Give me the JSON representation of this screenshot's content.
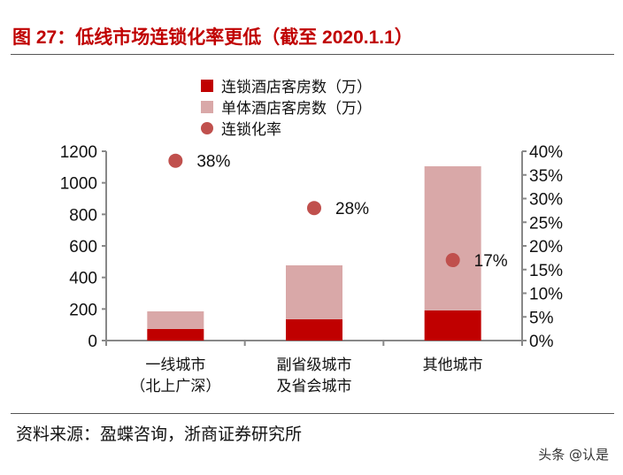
{
  "title": "图 27：低线市场连锁化率更低（截至 2020.1.1）",
  "source": "资料来源：盈蝶咨询，浙商证券研究所",
  "watermark": "头条 @认是",
  "chart_data": {
    "type": "bar",
    "stacked": true,
    "categories": [
      [
        "一线城市",
        "（北上广深）"
      ],
      [
        "副省级城市",
        "及省会城市"
      ],
      [
        "其他城市"
      ]
    ],
    "series": [
      {
        "name": "连锁酒店客房数（万）",
        "type": "bar",
        "axis": "left",
        "color": "#c00000",
        "values": [
          73,
          135,
          191
        ]
      },
      {
        "name": "单体酒店客房数（万）",
        "type": "bar",
        "axis": "left",
        "color": "#d9a8a8",
        "values": [
          112,
          342,
          914
        ]
      },
      {
        "name": "连锁化率",
        "type": "scatter",
        "axis": "right",
        "color": "#c0504d",
        "values": [
          0.38,
          0.28,
          0.17
        ],
        "labels": [
          "38%",
          "28%",
          "17%"
        ]
      }
    ],
    "ylim": [
      0,
      1200
    ],
    "yticks": [
      "0",
      "200",
      "400",
      "600",
      "800",
      "1000",
      "1200"
    ],
    "y2lim": [
      0,
      0.4
    ],
    "y2ticks": [
      "0%",
      "5%",
      "10%",
      "15%",
      "20%",
      "25%",
      "30%",
      "35%",
      "40%"
    ],
    "legend": "top",
    "grid": false
  }
}
